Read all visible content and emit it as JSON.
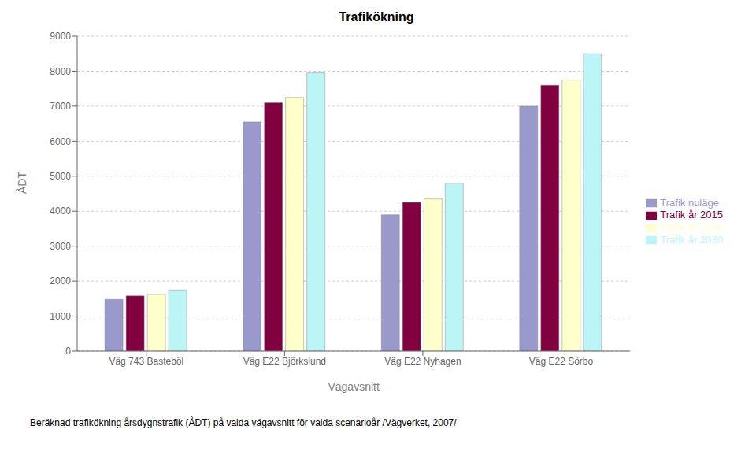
{
  "chart_data": {
    "type": "bar",
    "title": "Trafikökning",
    "xlabel": "Vägavsnitt",
    "ylabel": "ÅDT",
    "categories": [
      "Väg 743 Basteböl",
      "Väg E22 Björkslund",
      "Väg E22 Nyhagen",
      "Väg E22 Sörbo"
    ],
    "series": [
      {
        "name": "Trafik nuläge",
        "color": "#9999cc",
        "values": [
          1480,
          6550,
          3900,
          7000
        ]
      },
      {
        "name": "Trafik år 2015",
        "color": "#800040",
        "values": [
          1580,
          7100,
          4250,
          7600
        ]
      },
      {
        "name": "Trafik år 2018",
        "color": "#ffffcc",
        "values": [
          1620,
          7250,
          4350,
          7750
        ]
      },
      {
        "name": "Trafik år 2030",
        "color": "#bbf5f5",
        "values": [
          1750,
          7950,
          4800,
          8500
        ]
      }
    ],
    "ylim": [
      0,
      9000
    ],
    "yticks": [
      0,
      1000,
      2000,
      3000,
      4000,
      5000,
      6000,
      7000,
      8000,
      9000
    ],
    "grid": true,
    "legend": "right",
    "annotations": [
      "Beräknad trafikökning årsdygnstrafik (ÅDT) på valda vägavsnitt för valda scenarioår /Vägverket, 2007/"
    ]
  }
}
